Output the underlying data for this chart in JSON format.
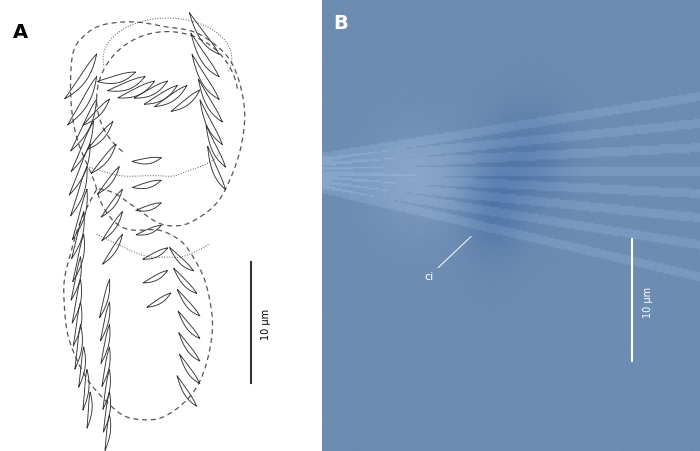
{
  "panel_A_label": "A",
  "panel_B_label": "B",
  "scale_bar_text": "10 μm",
  "annotation_text": "ci",
  "bg_color_A": "#ffffff",
  "fig_bg": "#ffffff",
  "outline_color": "#333333",
  "label_color": "#000000",
  "scalebar_color_A": "#333333",
  "scalebar_color_B": "#ffffff",
  "annotation_color_B": "#ffffff",
  "photo_placeholder": true,
  "photo_avg_color": "#7090b0"
}
